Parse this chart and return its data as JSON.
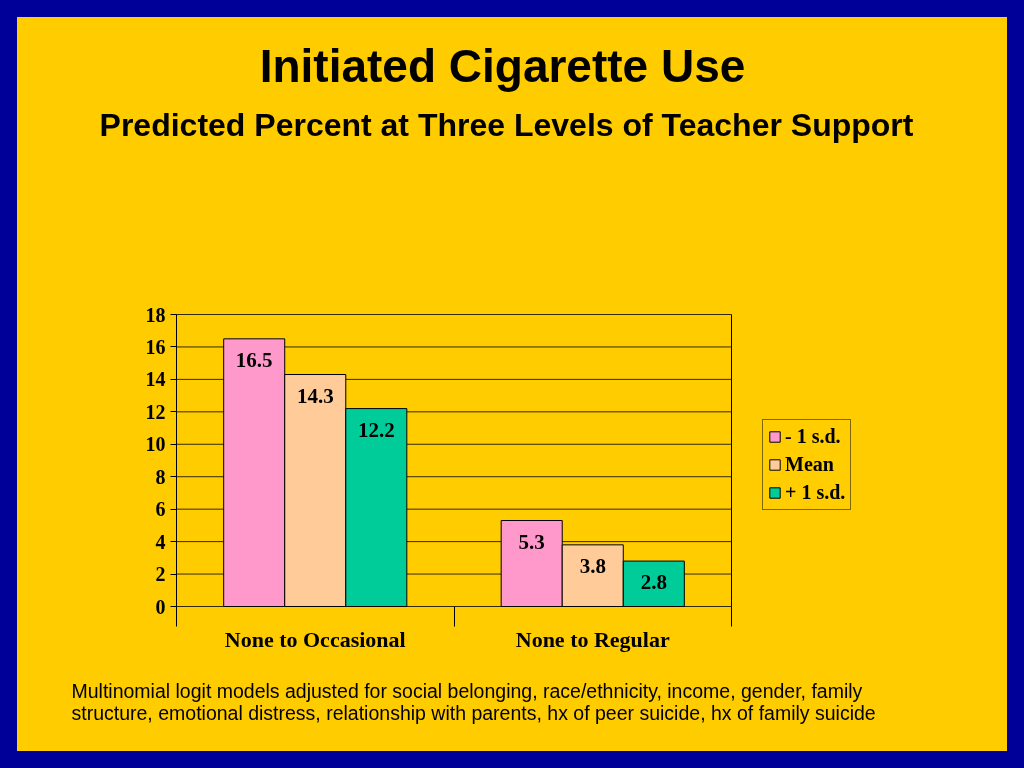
{
  "chart_data": {
    "type": "bar",
    "title": "Initiated Cigarette Use",
    "subtitle": "Predicted Percent at Three Levels of Teacher Support",
    "categories": [
      "None to Occasional",
      "None to Regular"
    ],
    "series": [
      {
        "name": "- 1 s.d.",
        "color": "#ff99cc",
        "values": [
          16.5,
          5.3
        ]
      },
      {
        "name": "Mean",
        "color": "#ffcc99",
        "values": [
          14.3,
          3.8
        ]
      },
      {
        "name": "+ 1 s.d.",
        "color": "#00cc99",
        "values": [
          12.2,
          2.8
        ]
      }
    ],
    "ylim": [
      0,
      18
    ],
    "yticks": [
      0,
      2,
      4,
      6,
      8,
      10,
      12,
      14,
      16,
      18
    ],
    "grid": "y",
    "legend": "right",
    "data_labels": true,
    "annotations": [
      "Multinomial logit models adjusted for social belonging, race/ethnicity, income, gender, family structure, emotional distress, relationship with parents, hx of peer suicide, hx of family suicide"
    ]
  }
}
